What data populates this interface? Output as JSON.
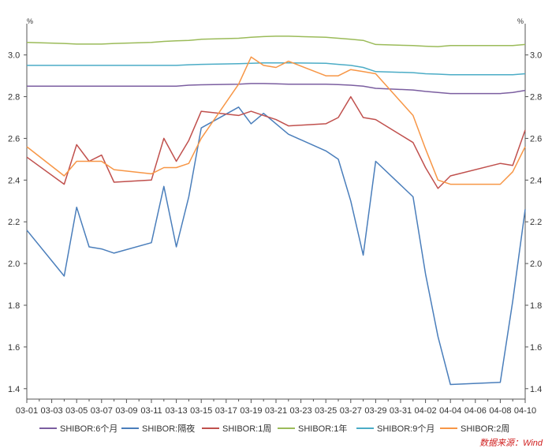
{
  "chart_data": {
    "type": "line",
    "unit_left": "%",
    "unit_right": "%",
    "ylim": [
      1.35,
      3.15
    ],
    "yticks": [
      1.4,
      1.6,
      1.8,
      2.0,
      2.2,
      2.4,
      2.6,
      2.8,
      3.0
    ],
    "ytick_labels": [
      "1.4",
      "1.6",
      "1.8",
      "2.0",
      "2.2",
      "2.4",
      "2.6",
      "2.8",
      "3.0"
    ],
    "xtick_labels": [
      "03-01",
      "03-03",
      "03-05",
      "03-07",
      "03-09",
      "03-11",
      "03-13",
      "03-15",
      "03-17",
      "03-19",
      "03-21",
      "03-23",
      "03-25",
      "03-27",
      "03-29",
      "03-31",
      "04-02",
      "04-04",
      "04-06",
      "04-08",
      "04-10"
    ],
    "x_dates": [
      "03-01",
      "03-04",
      "03-05",
      "03-06",
      "03-07",
      "03-08",
      "03-11",
      "03-12",
      "03-13",
      "03-14",
      "03-15",
      "03-18",
      "03-19",
      "03-20",
      "03-21",
      "03-22",
      "03-25",
      "03-26",
      "03-27",
      "03-28",
      "03-29",
      "04-01",
      "04-02",
      "04-03",
      "04-04",
      "04-08",
      "04-09",
      "04-10"
    ],
    "legend_position": "bottom",
    "grid": false,
    "source_note": "数据来源：Wind",
    "series": [
      {
        "name": "SHIBOR:6个月",
        "color": "#7b5ea0",
        "values": [
          2.85,
          2.85,
          2.85,
          2.85,
          2.85,
          2.85,
          2.85,
          2.85,
          2.85,
          2.855,
          2.857,
          2.86,
          2.863,
          2.863,
          2.862,
          2.86,
          2.86,
          2.858,
          2.855,
          2.85,
          2.84,
          2.832,
          2.825,
          2.82,
          2.815,
          2.815,
          2.82,
          2.83
        ]
      },
      {
        "name": "SHIBOR:隔夜",
        "color": "#4a7ebb",
        "values": [
          2.16,
          1.94,
          2.27,
          2.08,
          2.07,
          2.05,
          2.1,
          2.37,
          2.08,
          2.32,
          2.65,
          2.75,
          2.67,
          2.72,
          2.67,
          2.62,
          2.54,
          2.5,
          2.3,
          2.04,
          2.49,
          2.32,
          1.95,
          1.65,
          1.42,
          1.43,
          1.82,
          2.26
        ]
      },
      {
        "name": "SHIBOR:1周",
        "color": "#c0504d",
        "values": [
          2.51,
          2.38,
          2.57,
          2.49,
          2.52,
          2.39,
          2.4,
          2.6,
          2.49,
          2.59,
          2.73,
          2.71,
          2.73,
          2.71,
          2.69,
          2.66,
          2.67,
          2.7,
          2.8,
          2.7,
          2.69,
          2.58,
          2.46,
          2.36,
          2.42,
          2.48,
          2.47,
          2.64
        ]
      },
      {
        "name": "SHIBOR:1年",
        "color": "#9bbb59",
        "values": [
          3.06,
          3.055,
          3.052,
          3.052,
          3.052,
          3.055,
          3.06,
          3.065,
          3.068,
          3.07,
          3.075,
          3.08,
          3.085,
          3.088,
          3.09,
          3.09,
          3.085,
          3.08,
          3.075,
          3.07,
          3.05,
          3.045,
          3.042,
          3.04,
          3.045,
          3.045,
          3.045,
          3.05
        ]
      },
      {
        "name": "SHIBOR:9个月",
        "color": "#4bacc6",
        "values": [
          2.95,
          2.95,
          2.95,
          2.95,
          2.95,
          2.95,
          2.95,
          2.95,
          2.95,
          2.953,
          2.955,
          2.958,
          2.96,
          2.962,
          2.962,
          2.962,
          2.96,
          2.955,
          2.95,
          2.94,
          2.92,
          2.915,
          2.91,
          2.908,
          2.905,
          2.905,
          2.905,
          2.91
        ]
      },
      {
        "name": "SHIBOR:2周",
        "color": "#f79646",
        "values": [
          2.56,
          2.42,
          2.49,
          2.49,
          2.49,
          2.45,
          2.43,
          2.46,
          2.46,
          2.48,
          2.6,
          2.86,
          2.99,
          2.95,
          2.94,
          2.97,
          2.9,
          2.9,
          2.93,
          2.92,
          2.91,
          2.71,
          2.55,
          2.4,
          2.38,
          2.38,
          2.44,
          2.56
        ]
      }
    ]
  }
}
